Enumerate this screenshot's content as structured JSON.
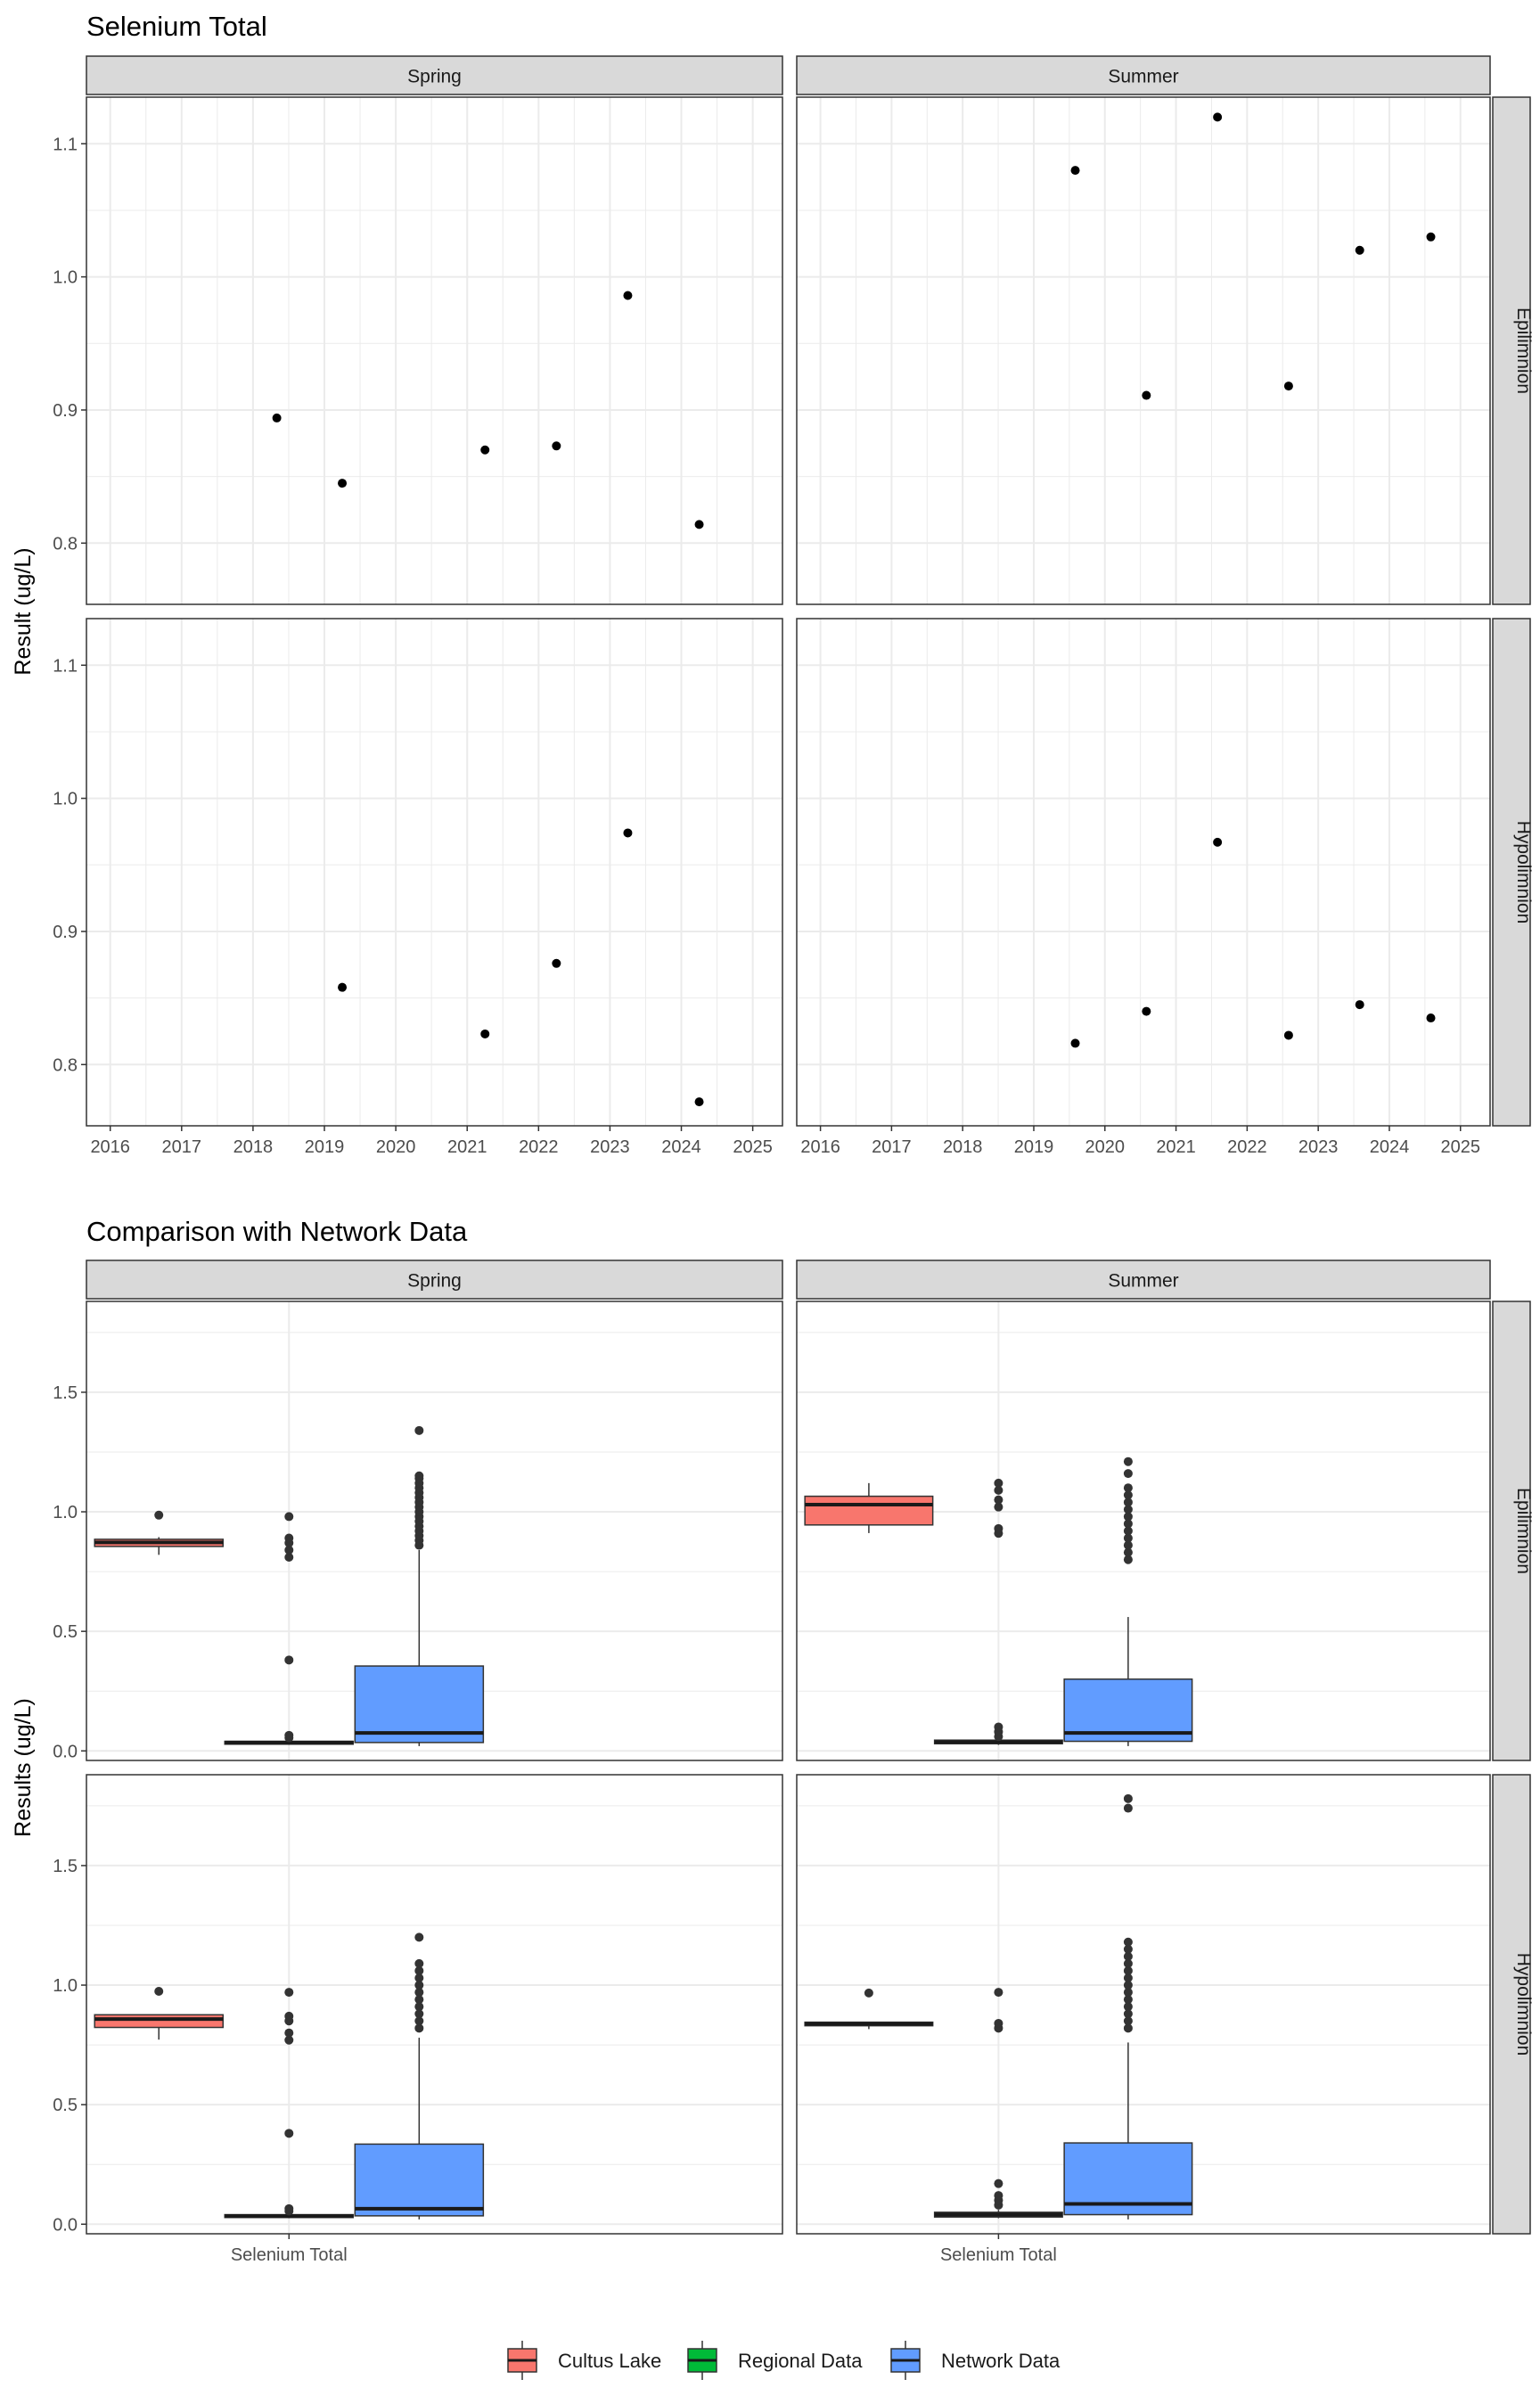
{
  "figure": {
    "titles": [
      "Selenium Total",
      "Comparison with Network Data"
    ]
  },
  "chart_data": [
    {
      "type": "scatter",
      "title": "Selenium Total",
      "ylabel": "Result (ug/L)",
      "xlabel": "",
      "x_type": "date",
      "xlim": [
        "2015-09",
        "2025-06"
      ],
      "ylim": [
        0.754,
        1.135
      ],
      "x_ticks": [
        "2016",
        "2017",
        "2018",
        "2019",
        "2020",
        "2021",
        "2022",
        "2023",
        "2024",
        "2025"
      ],
      "y_ticks": [
        0.8,
        0.9,
        1.0,
        1.1
      ],
      "y_tick_labels": [
        "0.8",
        "0.9",
        "1.0",
        "1.1"
      ],
      "grid": true,
      "col_facets": [
        "Spring",
        "Summer"
      ],
      "row_facets": [
        "Epilimnion",
        "Hypolimnion"
      ],
      "panels": [
        {
          "col": "Spring",
          "row": "Epilimnion",
          "points": [
            {
              "x": "2018-05",
              "y": 0.894
            },
            {
              "x": "2019-04",
              "y": 0.845
            },
            {
              "x": "2021-04",
              "y": 0.87
            },
            {
              "x": "2022-04",
              "y": 0.873
            },
            {
              "x": "2023-04",
              "y": 0.986
            },
            {
              "x": "2024-04",
              "y": 0.814
            }
          ]
        },
        {
          "col": "Summer",
          "row": "Epilimnion",
          "points": [
            {
              "x": "2019-08",
              "y": 1.08
            },
            {
              "x": "2020-08",
              "y": 0.911
            },
            {
              "x": "2021-08",
              "y": 1.12
            },
            {
              "x": "2022-08",
              "y": 0.918
            },
            {
              "x": "2023-08",
              "y": 1.02
            },
            {
              "x": "2024-08",
              "y": 1.03
            }
          ]
        },
        {
          "col": "Spring",
          "row": "Hypolimnion",
          "points": [
            {
              "x": "2019-04",
              "y": 0.858
            },
            {
              "x": "2021-04",
              "y": 0.823
            },
            {
              "x": "2022-04",
              "y": 0.876
            },
            {
              "x": "2023-04",
              "y": 0.974
            },
            {
              "x": "2024-04",
              "y": 0.772
            }
          ]
        },
        {
          "col": "Summer",
          "row": "Hypolimnion",
          "points": [
            {
              "x": "2019-08",
              "y": 0.816
            },
            {
              "x": "2020-08",
              "y": 0.84
            },
            {
              "x": "2021-08",
              "y": 0.967
            },
            {
              "x": "2022-08",
              "y": 0.822
            },
            {
              "x": "2023-08",
              "y": 0.845
            },
            {
              "x": "2024-08",
              "y": 0.835
            }
          ]
        }
      ]
    },
    {
      "type": "box",
      "title": "Comparison with Network Data",
      "ylabel": "Results (ug/L)",
      "xlabel": "",
      "categories": [
        "Selenium Total"
      ],
      "ylim": [
        -0.04,
        1.88
      ],
      "y_ticks": [
        0.0,
        0.5,
        1.0,
        1.5
      ],
      "y_tick_labels": [
        "0.0",
        "0.5",
        "1.0",
        "1.5"
      ],
      "grid": true,
      "col_facets": [
        "Spring",
        "Summer"
      ],
      "row_facets": [
        "Epilimnion",
        "Hypolimnion"
      ],
      "legend": {
        "position": "bottom",
        "items": [
          {
            "name": "Cultus Lake",
            "color": "#F8766D"
          },
          {
            "name": "Regional Data",
            "color": "#00BA38"
          },
          {
            "name": "Network Data",
            "color": "#619CFF"
          }
        ]
      },
      "panels": [
        {
          "col": "Spring",
          "row": "Epilimnion",
          "boxes": [
            {
              "group": "Cultus Lake",
              "q1": 0.855,
              "median": 0.872,
              "q3": 0.885,
              "low": 0.82,
              "high": 0.894,
              "outliers": [
                0.986
              ]
            },
            {
              "group": "Regional Data",
              "q1": 0.028,
              "median": 0.035,
              "q3": 0.04,
              "low": 0.025,
              "high": 0.045,
              "outliers": [
                0.055,
                0.065,
                0.38,
                0.81,
                0.84,
                0.87,
                0.89,
                0.98
              ]
            },
            {
              "group": "Network Data",
              "q1": 0.035,
              "median": 0.075,
              "q3": 0.355,
              "low": 0.02,
              "high": 0.84,
              "outliers": [
                0.86,
                0.88,
                0.9,
                0.92,
                0.94,
                0.96,
                0.98,
                1.0,
                1.02,
                1.04,
                1.06,
                1.08,
                1.1,
                1.12,
                1.14,
                1.15,
                1.34
              ]
            }
          ]
        },
        {
          "col": "Summer",
          "row": "Epilimnion",
          "boxes": [
            {
              "group": "Cultus Lake",
              "q1": 0.945,
              "median": 1.03,
              "q3": 1.065,
              "low": 0.911,
              "high": 1.12,
              "outliers": []
            },
            {
              "group": "Regional Data",
              "q1": 0.03,
              "median": 0.037,
              "q3": 0.045,
              "low": 0.025,
              "high": 0.05,
              "outliers": [
                0.06,
                0.08,
                0.1,
                0.91,
                0.93,
                1.02,
                1.05,
                1.09,
                1.12
              ]
            },
            {
              "group": "Network Data",
              "q1": 0.04,
              "median": 0.075,
              "q3": 0.3,
              "low": 0.02,
              "high": 0.56,
              "outliers": [
                0.8,
                0.83,
                0.86,
                0.89,
                0.92,
                0.95,
                0.98,
                1.01,
                1.04,
                1.07,
                1.1,
                1.16,
                1.21
              ]
            }
          ]
        },
        {
          "col": "Spring",
          "row": "Hypolimnion",
          "boxes": [
            {
              "group": "Cultus Lake",
              "q1": 0.823,
              "median": 0.858,
              "q3": 0.876,
              "low": 0.772,
              "high": 0.876,
              "outliers": [
                0.974
              ]
            },
            {
              "group": "Regional Data",
              "q1": 0.028,
              "median": 0.034,
              "q3": 0.04,
              "low": 0.025,
              "high": 0.045,
              "outliers": [
                0.055,
                0.065,
                0.38,
                0.77,
                0.8,
                0.85,
                0.87,
                0.97
              ]
            },
            {
              "group": "Network Data",
              "q1": 0.035,
              "median": 0.065,
              "q3": 0.335,
              "low": 0.02,
              "high": 0.78,
              "outliers": [
                0.82,
                0.85,
                0.88,
                0.91,
                0.94,
                0.97,
                1.0,
                1.03,
                1.06,
                1.09,
                1.2
              ]
            }
          ]
        },
        {
          "col": "Summer",
          "row": "Hypolimnion",
          "boxes": [
            {
              "group": "Cultus Lake",
              "q1": 0.83,
              "median": 0.838,
              "q3": 0.845,
              "low": 0.816,
              "high": 0.845,
              "outliers": [
                0.967
              ]
            },
            {
              "group": "Regional Data",
              "q1": 0.03,
              "median": 0.04,
              "q3": 0.05,
              "low": 0.025,
              "high": 0.06,
              "outliers": [
                0.08,
                0.1,
                0.12,
                0.17,
                0.82,
                0.84,
                0.97
              ]
            },
            {
              "group": "Network Data",
              "q1": 0.04,
              "median": 0.085,
              "q3": 0.34,
              "low": 0.02,
              "high": 0.76,
              "outliers": [
                0.82,
                0.85,
                0.88,
                0.91,
                0.94,
                0.97,
                1.0,
                1.03,
                1.06,
                1.09,
                1.12,
                1.15,
                1.18,
                1.74,
                1.78
              ]
            }
          ]
        }
      ]
    }
  ]
}
